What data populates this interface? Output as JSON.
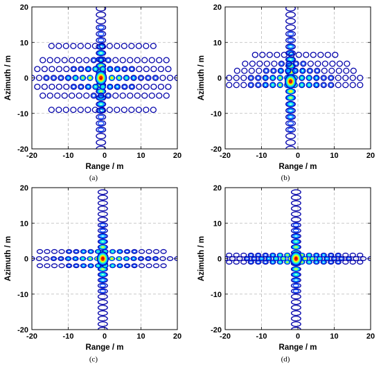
{
  "figure": {
    "panels": [
      {
        "caption": "(a)"
      },
      {
        "caption": "(b)"
      },
      {
        "caption": "(c)"
      },
      {
        "caption": "(d)"
      }
    ]
  },
  "chart_data": [
    {
      "type": "contour",
      "title": "",
      "xlabel": "Range / m",
      "ylabel": "Azimuth / m",
      "xlim": [
        -20,
        20
      ],
      "ylim": [
        -20,
        20
      ],
      "xticks": [
        -20,
        -10,
        0,
        10,
        20
      ],
      "yticks": [
        -20,
        -10,
        0,
        10,
        20
      ],
      "grid": true,
      "peak": {
        "x": -1,
        "y": 0
      },
      "azimuth_extent": [
        -20,
        20
      ],
      "range_extent": [
        -20,
        20
      ],
      "sidelobe_lines_y": [
        -9,
        -5,
        -2.5,
        0,
        2.5,
        5,
        9
      ],
      "colormap": [
        "#0000aa",
        "#0044ff",
        "#00bbff",
        "#22ffcc",
        "#aaff44",
        "#ffee00",
        "#ff6600",
        "#dd0000"
      ]
    },
    {
      "type": "contour",
      "title": "",
      "xlabel": "Range / m",
      "ylabel": "Azimuth / m",
      "xlim": [
        -20,
        20
      ],
      "ylim": [
        -20,
        20
      ],
      "xticks": [
        -20,
        -10,
        0,
        10,
        20
      ],
      "yticks": [
        -20,
        -10,
        0,
        10,
        20
      ],
      "grid": true,
      "peak": {
        "x": -2,
        "y": -1
      },
      "azimuth_extent": [
        -20,
        20
      ],
      "range_extent": [
        -20,
        20
      ],
      "sidelobe_lines_y": [
        -2,
        0,
        2,
        4,
        6.5
      ],
      "colormap": [
        "#0000aa",
        "#0044ff",
        "#00bbff",
        "#22ffcc",
        "#aaff44",
        "#ffee00",
        "#ff6600",
        "#dd0000"
      ]
    },
    {
      "type": "contour",
      "title": "",
      "xlabel": "Range / m",
      "ylabel": "Azimuth / m",
      "xlim": [
        -20,
        20
      ],
      "ylim": [
        -20,
        20
      ],
      "xticks": [
        -20,
        -10,
        0,
        10,
        20
      ],
      "yticks": [
        -20,
        -10,
        0,
        10,
        20
      ],
      "grid": true,
      "peak": {
        "x": -0.5,
        "y": 0
      },
      "azimuth_extent": [
        -20,
        20
      ],
      "range_extent": [
        -20,
        20
      ],
      "sidelobe_lines_y": [
        -2,
        0,
        2
      ],
      "colormap": [
        "#0000aa",
        "#0044ff",
        "#00bbff",
        "#22ffcc",
        "#aaff44",
        "#ffee00",
        "#ff6600",
        "#dd0000"
      ]
    },
    {
      "type": "contour",
      "title": "",
      "xlabel": "Range / m",
      "ylabel": "Azimuth / m",
      "xlim": [
        -20,
        20
      ],
      "ylim": [
        -20,
        20
      ],
      "xticks": [
        -20,
        -10,
        0,
        10,
        20
      ],
      "yticks": [
        -20,
        -10,
        0,
        10,
        20
      ],
      "grid": true,
      "peak": {
        "x": -0.5,
        "y": 0
      },
      "azimuth_extent": [
        -20,
        20
      ],
      "range_extent": [
        -20,
        20
      ],
      "sidelobe_lines_y": [
        -1,
        0,
        1
      ],
      "colormap": [
        "#0000aa",
        "#0044ff",
        "#00bbff",
        "#22ffcc",
        "#aaff44",
        "#ffee00",
        "#ff6600",
        "#dd0000"
      ]
    }
  ]
}
